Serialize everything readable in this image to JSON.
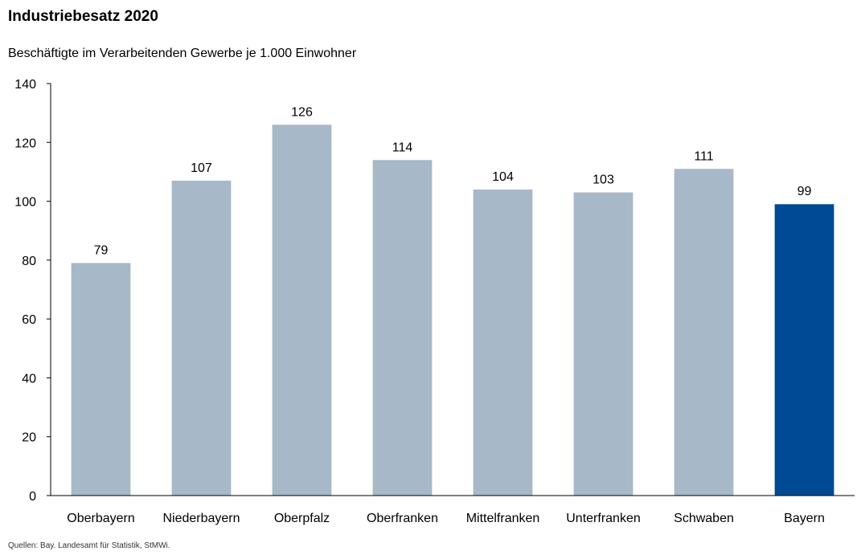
{
  "title": "Industriebesatz 2020",
  "subtitle": "Beschäftigte im Verarbeitenden Gewerbe je 1.000 Einwohner",
  "source": "Quellen: Bay. Landesamt für Statistik, StMWi.",
  "colors": {
    "bar_default": "#a7b8c8",
    "bar_highlight": "#004a93",
    "axis": "#000000"
  },
  "chart_data": {
    "type": "bar",
    "title": "Industriebesatz 2020",
    "subtitle": "Beschäftigte im Verarbeitenden Gewerbe je 1.000 Einwohner",
    "xlabel": "",
    "ylabel": "",
    "categories": [
      "Oberbayern",
      "Niederbayern",
      "Oberpfalz",
      "Oberfranken",
      "Mittelfranken",
      "Unterfranken",
      "Schwaben",
      "Bayern"
    ],
    "values": [
      79,
      107,
      126,
      114,
      104,
      103,
      111,
      99
    ],
    "data_labels": [
      "79",
      "107",
      "126",
      "114",
      "104",
      "103",
      "111",
      "99"
    ],
    "highlight_category": "Bayern",
    "ylim": [
      0,
      140
    ],
    "yticks": [
      0,
      20,
      40,
      60,
      80,
      100,
      120,
      140
    ],
    "ytick_labels": [
      "0",
      "20",
      "40",
      "60",
      "80",
      "100",
      "120",
      "140"
    ],
    "grid": false,
    "legend": "none"
  }
}
